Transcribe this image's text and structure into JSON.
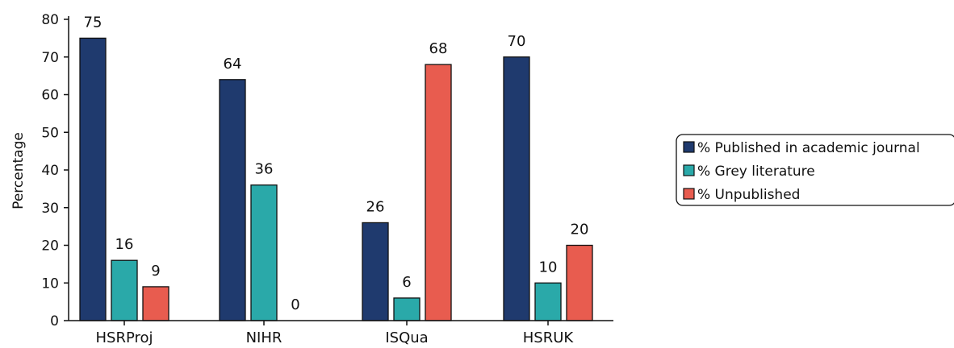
{
  "chart_data": {
    "type": "bar",
    "title": "",
    "xlabel": "",
    "ylabel": "Percentage",
    "ylim": [
      0,
      80
    ],
    "yticks": [
      0,
      10,
      20,
      30,
      40,
      50,
      60,
      70,
      80
    ],
    "categories": [
      "HSRProj",
      "NIHR",
      "ISQua",
      "HSRUK"
    ],
    "series": [
      {
        "name": "% Published in academic journal",
        "color": "#1f3a6e",
        "values": [
          75,
          64,
          26,
          70
        ],
        "labels": [
          "75",
          "64",
          "26",
          "70"
        ]
      },
      {
        "name": "% Grey literature",
        "color": "#2aa9a9",
        "values": [
          16,
          36,
          6,
          10
        ],
        "labels": [
          "16",
          "36",
          "6",
          "10"
        ]
      },
      {
        "name": "% Unpublished",
        "color": "#e85c4f",
        "values": [
          9,
          0,
          68,
          20
        ],
        "labels": [
          "9",
          "0",
          "68",
          "20"
        ]
      }
    ],
    "grid": false,
    "legend_position": "right"
  }
}
